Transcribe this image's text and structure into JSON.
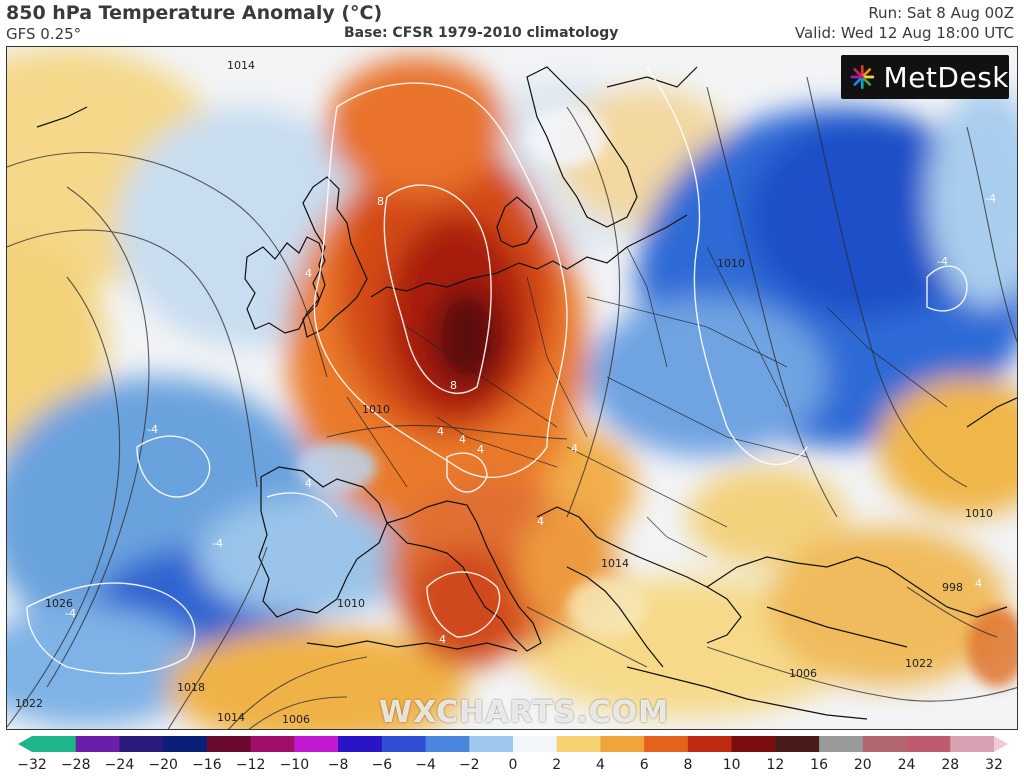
{
  "header": {
    "title": "850 hPa Temperature Anomaly (°C)",
    "model": "GFS 0.25°",
    "base": "Base: CFSR 1979-2010 climatology",
    "run": "Run: Sat 8 Aug 00Z",
    "valid": "Valid: Wed 12 Aug 18:00 UTC"
  },
  "logo": {
    "text": "MetDesk",
    "icon": "metdesk-burst-icon"
  },
  "watermark": "WXCHARTS.COM",
  "map": {
    "isobar_labels": [
      "1014",
      "1010",
      "1026",
      "1022",
      "1018",
      "1014",
      "1006",
      "1010",
      "1010",
      "1006",
      "998",
      "1010",
      "1014",
      "1022"
    ],
    "anomaly_labels": [
      "8",
      "8",
      "4",
      "4",
      "4",
      "4",
      "4",
      "-4",
      "-4",
      "-4",
      "-4",
      "-4",
      "4",
      "4",
      "4",
      "4"
    ]
  },
  "colorbar": {
    "min": -32,
    "max": 32,
    "ticks": [
      "−32",
      "−28",
      "−24",
      "−20",
      "−16",
      "−12",
      "−10",
      "−8",
      "−6",
      "−4",
      "−2",
      "0",
      "2",
      "4",
      "6",
      "8",
      "10",
      "12",
      "16",
      "20",
      "24",
      "28",
      "32"
    ],
    "colors": [
      "#1fb58a",
      "#6a1fa8",
      "#2b1a7a",
      "#0a1e78",
      "#6a0a2e",
      "#a0106a",
      "#c21ad0",
      "#2a14c8",
      "#2f4fd6",
      "#4a86e0",
      "#9cc7ee",
      "#f2f5fa",
      "#f6d272",
      "#f0a43a",
      "#e4621c",
      "#bf2a12",
      "#7a0e0e",
      "#4a1a1a",
      "#999999",
      "#b36870",
      "#c05a6e",
      "#d8a0b0",
      "#f0c9d2"
    ]
  }
}
